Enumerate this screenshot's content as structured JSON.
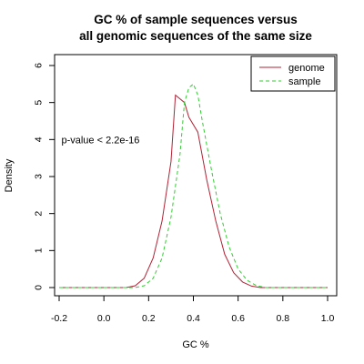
{
  "chart_data": {
    "type": "line",
    "title_lines": [
      "GC % of sample sequences versus",
      "all genomic sequences of the same size"
    ],
    "xlabel": "GC %",
    "ylabel": "Density",
    "xlim": [
      -0.2,
      1.0
    ],
    "ylim": [
      0,
      6
    ],
    "x_ticks": [
      {
        "value": -0.2,
        "label": "-0.2"
      },
      {
        "value": 0.0,
        "label": "0.0"
      },
      {
        "value": 0.2,
        "label": "0.2"
      },
      {
        "value": 0.4,
        "label": "0.4"
      },
      {
        "value": 0.6,
        "label": "0.6"
      },
      {
        "value": 0.8,
        "label": "0.8"
      },
      {
        "value": 1.0,
        "label": "1.0"
      }
    ],
    "y_ticks": [
      {
        "value": 0,
        "label": "0"
      },
      {
        "value": 1,
        "label": "1"
      },
      {
        "value": 2,
        "label": "2"
      },
      {
        "value": 3,
        "label": "3"
      },
      {
        "value": 4,
        "label": "4"
      },
      {
        "value": 5,
        "label": "5"
      },
      {
        "value": 6,
        "label": "6"
      }
    ],
    "annotation": {
      "text": "p-value < 2.2e-16",
      "x": -0.19,
      "y": 4.0
    },
    "grid": false,
    "legend_position": "top-right",
    "series": [
      {
        "name": "genome",
        "color": "#b22234",
        "dash": "solid",
        "x": [
          -0.2,
          0.0,
          0.1,
          0.14,
          0.18,
          0.22,
          0.26,
          0.3,
          0.32,
          0.36,
          0.38,
          0.42,
          0.46,
          0.5,
          0.54,
          0.58,
          0.62,
          0.66,
          0.7,
          0.8,
          1.0
        ],
        "y": [
          0,
          0,
          0,
          0.05,
          0.25,
          0.8,
          1.8,
          3.4,
          5.2,
          5.0,
          4.6,
          4.2,
          2.9,
          1.8,
          0.9,
          0.4,
          0.15,
          0.04,
          0,
          0,
          0
        ]
      },
      {
        "name": "sample",
        "color": "#33cc33",
        "dash": "dashed",
        "x": [
          -0.2,
          0.0,
          0.14,
          0.18,
          0.22,
          0.26,
          0.3,
          0.34,
          0.36,
          0.38,
          0.4,
          0.42,
          0.44,
          0.48,
          0.52,
          0.56,
          0.6,
          0.64,
          0.68,
          0.72,
          0.8,
          1.0
        ],
        "y": [
          0,
          0,
          0,
          0.05,
          0.25,
          0.8,
          1.9,
          3.6,
          5.0,
          5.4,
          5.5,
          5.2,
          4.5,
          3.2,
          2.0,
          1.1,
          0.5,
          0.2,
          0.06,
          0,
          0,
          0
        ]
      }
    ]
  }
}
